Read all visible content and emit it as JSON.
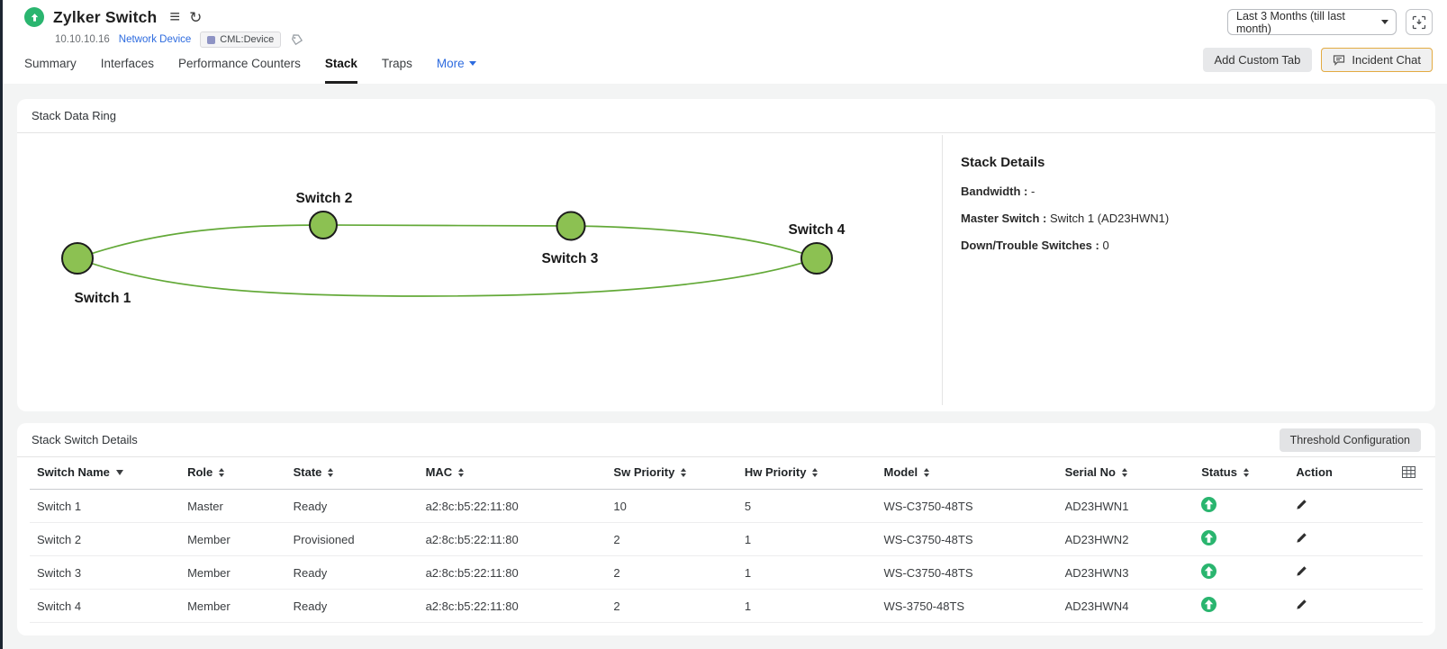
{
  "header": {
    "title": "Zylker Switch",
    "ip": "10.10.10.16",
    "device_type_link": "Network Device",
    "tag": "CML:Device",
    "period_selector": "Last 3 Months (till last month)",
    "tabs": [
      {
        "label": "Summary",
        "active": false
      },
      {
        "label": "Interfaces",
        "active": false
      },
      {
        "label": "Performance Counters",
        "active": false
      },
      {
        "label": "Stack",
        "active": true
      },
      {
        "label": "Traps",
        "active": false
      }
    ],
    "more_label": "More",
    "add_custom_tab_label": "Add Custom Tab",
    "incident_chat_label": "Incident Chat"
  },
  "ring": {
    "card_title": "Stack Data Ring",
    "nodes": [
      {
        "name": "Switch 1"
      },
      {
        "name": "Switch 2"
      },
      {
        "name": "Switch 3"
      },
      {
        "name": "Switch 4"
      }
    ],
    "details": {
      "title": "Stack Details",
      "bandwidth_label": "Bandwidth :",
      "bandwidth_value": "-",
      "master_label": "Master Switch :",
      "master_value": "Switch 1 (AD23HWN1)",
      "down_label": "Down/Trouble Switches :",
      "down_value": "0"
    }
  },
  "table": {
    "card_title": "Stack Switch Details",
    "threshold_button_label": "Threshold Configuration",
    "columns": [
      {
        "label": "Switch Name",
        "key": "name",
        "sort": "desc",
        "width": "10.8%"
      },
      {
        "label": "Role",
        "key": "role",
        "sort": "both",
        "width": "7.6%"
      },
      {
        "label": "State",
        "key": "state",
        "sort": "both",
        "width": "9.5%"
      },
      {
        "label": "MAC",
        "key": "mac",
        "sort": "both",
        "width": "13.5%"
      },
      {
        "label": "Sw Priority",
        "key": "sw_priority",
        "sort": "both",
        "width": "9.4%"
      },
      {
        "label": "Hw Priority",
        "key": "hw_priority",
        "sort": "both",
        "width": "10%"
      },
      {
        "label": "Model",
        "key": "model",
        "sort": "both",
        "width": "13%"
      },
      {
        "label": "Serial No",
        "key": "serial_no",
        "sort": "both",
        "width": "9.8%"
      },
      {
        "label": "Status",
        "key": "status",
        "sort": "both",
        "width": "6.8%"
      },
      {
        "label": "Action",
        "key": "action",
        "sort": "none",
        "width": "9.6%"
      }
    ],
    "rows": [
      {
        "name": "Switch 1",
        "role": "Master",
        "state": "Ready",
        "mac": "a2:8c:b5:22:11:80",
        "sw_priority": "10",
        "hw_priority": "5",
        "model": "WS-C3750-48TS",
        "serial_no": "AD23HWN1",
        "status": "up"
      },
      {
        "name": "Switch 2",
        "role": "Member",
        "state": "Provisioned",
        "mac": "a2:8c:b5:22:11:80",
        "sw_priority": "2",
        "hw_priority": "1",
        "model": "WS-C3750-48TS",
        "serial_no": "AD23HWN2",
        "status": "up"
      },
      {
        "name": "Switch 3",
        "role": "Member",
        "state": "Ready",
        "mac": "a2:8c:b5:22:11:80",
        "sw_priority": "2",
        "hw_priority": "1",
        "model": "WS-C3750-48TS",
        "serial_no": "AD23HWN3",
        "status": "up"
      },
      {
        "name": "Switch 4",
        "role": "Member",
        "state": "Ready",
        "mac": "a2:8c:b5:22:11:80",
        "sw_priority": "2",
        "hw_priority": "1",
        "model": "WS-3750-48TS",
        "serial_no": "AD23HWN4",
        "status": "up"
      }
    ]
  },
  "colors": {
    "status_green": "#2ab56f",
    "node_green": "#8cc152",
    "ring_line_green": "#63a938",
    "link_blue": "#2d6bdf",
    "chat_border_amber": "#e3ab42"
  }
}
